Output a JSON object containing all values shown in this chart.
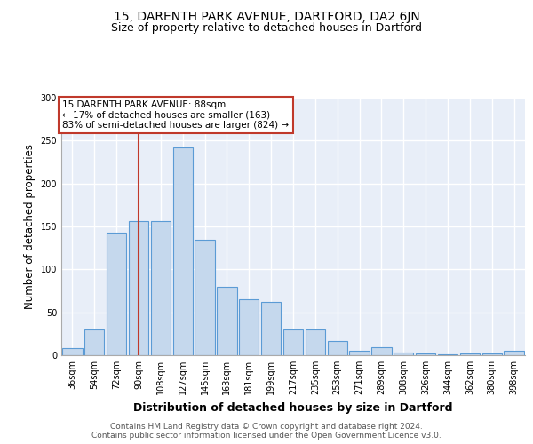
{
  "title": "15, DARENTH PARK AVENUE, DARTFORD, DA2 6JN",
  "subtitle": "Size of property relative to detached houses in Dartford",
  "xlabel": "Distribution of detached houses by size in Dartford",
  "ylabel": "Number of detached properties",
  "categories": [
    "36sqm",
    "54sqm",
    "72sqm",
    "90sqm",
    "108sqm",
    "127sqm",
    "145sqm",
    "163sqm",
    "181sqm",
    "199sqm",
    "217sqm",
    "235sqm",
    "253sqm",
    "271sqm",
    "289sqm",
    "308sqm",
    "326sqm",
    "344sqm",
    "362sqm",
    "380sqm",
    "398sqm"
  ],
  "values": [
    8,
    30,
    143,
    156,
    156,
    242,
    135,
    80,
    65,
    62,
    30,
    30,
    17,
    5,
    9,
    3,
    2,
    1,
    2,
    2,
    5
  ],
  "bar_color": "#c5d8ed",
  "bar_edge_color": "#5b9bd5",
  "vline_color": "#c0392b",
  "vline_position": 3.5,
  "annotation_text": "15 DARENTH PARK AVENUE: 88sqm\n← 17% of detached houses are smaller (163)\n83% of semi-detached houses are larger (824) →",
  "annotation_box_color": "white",
  "annotation_box_edge_color": "#c0392b",
  "ylim": [
    0,
    300
  ],
  "yticks": [
    0,
    50,
    100,
    150,
    200,
    250,
    300
  ],
  "footer_text": "Contains HM Land Registry data © Crown copyright and database right 2024.\nContains public sector information licensed under the Open Government Licence v3.0.",
  "bg_color": "#e8eef8",
  "title_fontsize": 10,
  "subtitle_fontsize": 9,
  "tick_fontsize": 7,
  "ylabel_fontsize": 8.5,
  "xlabel_fontsize": 9,
  "footer_fontsize": 6.5,
  "annotation_fontsize": 7.5
}
